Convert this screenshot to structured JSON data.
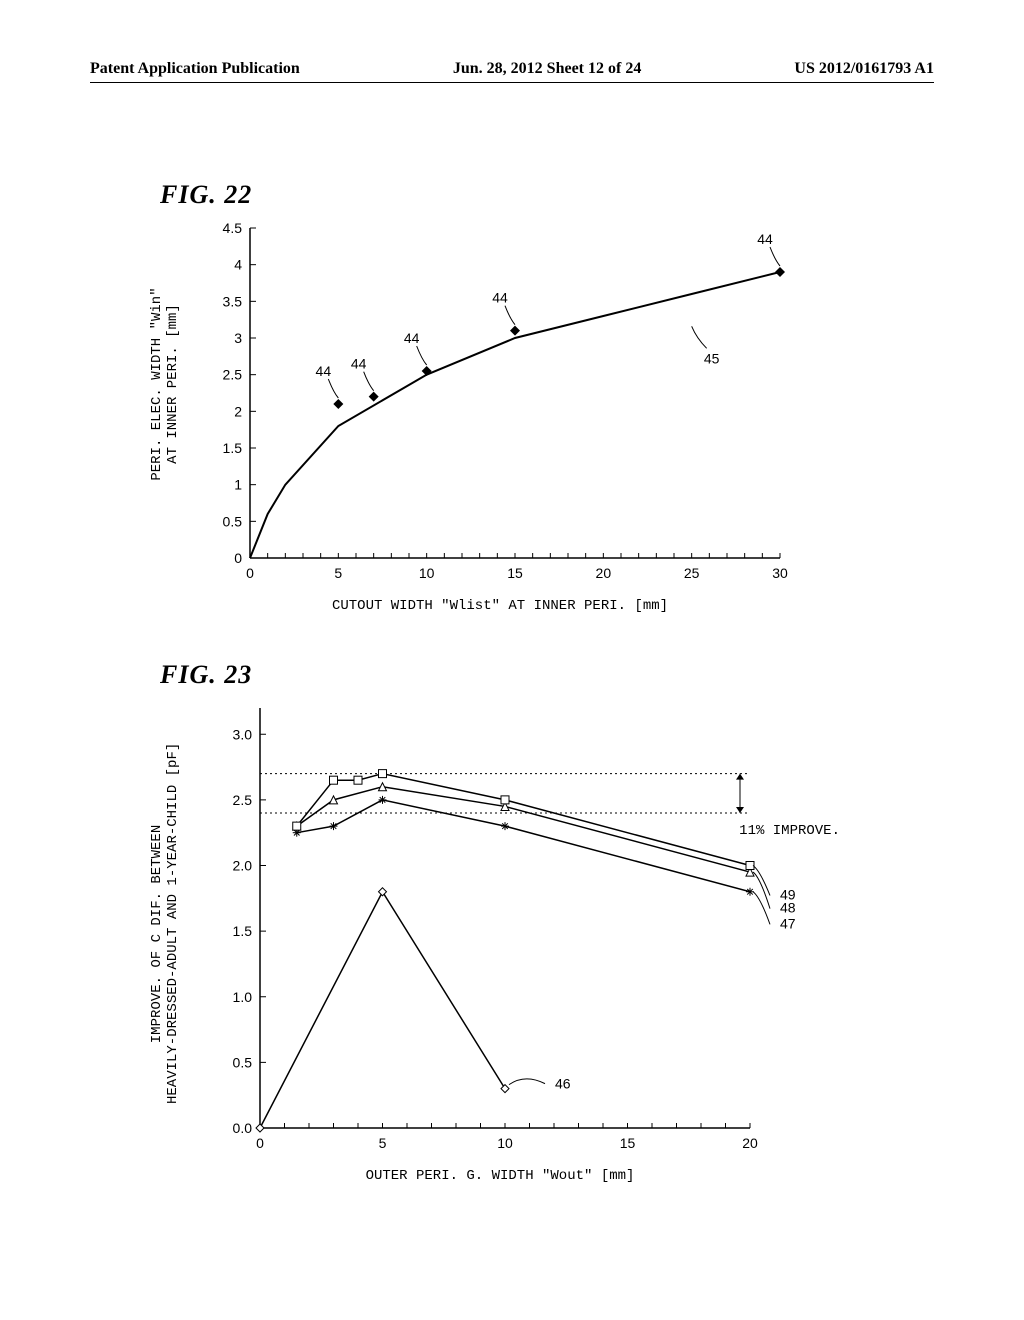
{
  "header": {
    "left": "Patent Application Publication",
    "center": "Jun. 28, 2012  Sheet 12 of 24",
    "right": "US 2012/0161793 A1"
  },
  "fig22": {
    "title": "FIG. 22",
    "type": "line",
    "xlabel": "CUTOUT WIDTH \"Wlist\" AT INNER PERI. [mm]",
    "ylabel": "PERI. ELEC. WIDTH \"Win\"\nAT INNER PERI. [mm]",
    "xlim": [
      0,
      30
    ],
    "ylim": [
      0,
      4.5
    ],
    "xtick_step": 5,
    "ytick_step": 0.5,
    "yticks": [
      0,
      0.5,
      1,
      1.5,
      2,
      2.5,
      3,
      3.5,
      4,
      4.5
    ],
    "xticks": [
      0,
      5,
      10,
      15,
      20,
      25,
      30
    ],
    "curve": [
      {
        "x": 0,
        "y": 0
      },
      {
        "x": 1,
        "y": 0.6
      },
      {
        "x": 2,
        "y": 1.0
      },
      {
        "x": 5,
        "y": 1.8
      },
      {
        "x": 10,
        "y": 2.5
      },
      {
        "x": 15,
        "y": 3.0
      },
      {
        "x": 20,
        "y": 3.3
      },
      {
        "x": 25,
        "y": 3.6
      },
      {
        "x": 30,
        "y": 3.9
      }
    ],
    "markers": [
      {
        "x": 5,
        "y": 2.1,
        "label": "44"
      },
      {
        "x": 7,
        "y": 2.2,
        "label": "44"
      },
      {
        "x": 10,
        "y": 2.55,
        "label": "44"
      },
      {
        "x": 15,
        "y": 3.1,
        "label": "44"
      },
      {
        "x": 30,
        "y": 3.9,
        "label": "44"
      }
    ],
    "curve_label": {
      "x": 25,
      "y": 3.2,
      "text": "45"
    },
    "line_color": "#000000",
    "marker_color": "#000000",
    "line_width": 2,
    "marker_size": 5,
    "background_color": "#ffffff"
  },
  "fig23": {
    "title": "FIG. 23",
    "type": "line",
    "xlabel": "OUTER PERI. G. WIDTH \"Wout\" [mm]",
    "ylabel": "IMPROVE. OF C DIF. BETWEEN\nHEAVILY-DRESSED-ADULT AND 1-YEAR-CHILD [pF]",
    "xlim": [
      0,
      20
    ],
    "ylim": [
      0,
      3.2
    ],
    "xtick_step": 5,
    "ytick_step": 0.5,
    "yticks": [
      0.0,
      0.5,
      1.0,
      1.5,
      2.0,
      2.5,
      3.0
    ],
    "xticks": [
      0,
      5,
      10,
      15,
      20
    ],
    "series": [
      {
        "label": "46",
        "marker": "diamond",
        "points": [
          {
            "x": 0,
            "y": 0.0
          },
          {
            "x": 5,
            "y": 1.8
          },
          {
            "x": 10,
            "y": 0.3
          }
        ]
      },
      {
        "label": "47",
        "marker": "asterisk",
        "points": [
          {
            "x": 1.5,
            "y": 2.25
          },
          {
            "x": 3,
            "y": 2.3
          },
          {
            "x": 5,
            "y": 2.5
          },
          {
            "x": 10,
            "y": 2.3
          },
          {
            "x": 20,
            "y": 1.8
          }
        ]
      },
      {
        "label": "48",
        "marker": "triangle",
        "points": [
          {
            "x": 1.5,
            "y": 2.3
          },
          {
            "x": 3,
            "y": 2.5
          },
          {
            "x": 5,
            "y": 2.6
          },
          {
            "x": 10,
            "y": 2.45
          },
          {
            "x": 20,
            "y": 1.95
          }
        ]
      },
      {
        "label": "49",
        "marker": "square",
        "points": [
          {
            "x": 1.5,
            "y": 2.3
          },
          {
            "x": 3,
            "y": 2.65
          },
          {
            "x": 4,
            "y": 2.65
          },
          {
            "x": 5,
            "y": 2.7
          },
          {
            "x": 10,
            "y": 2.5
          },
          {
            "x": 20,
            "y": 2.0
          }
        ]
      }
    ],
    "hlines": [
      {
        "y": 2.7,
        "style": "dotted"
      },
      {
        "y": 2.4,
        "style": "dotted"
      }
    ],
    "improve_annotation": "11%\nIMPROVE.",
    "line_color": "#000000",
    "line_width": 1.5,
    "marker_size": 6,
    "background_color": "#ffffff"
  }
}
